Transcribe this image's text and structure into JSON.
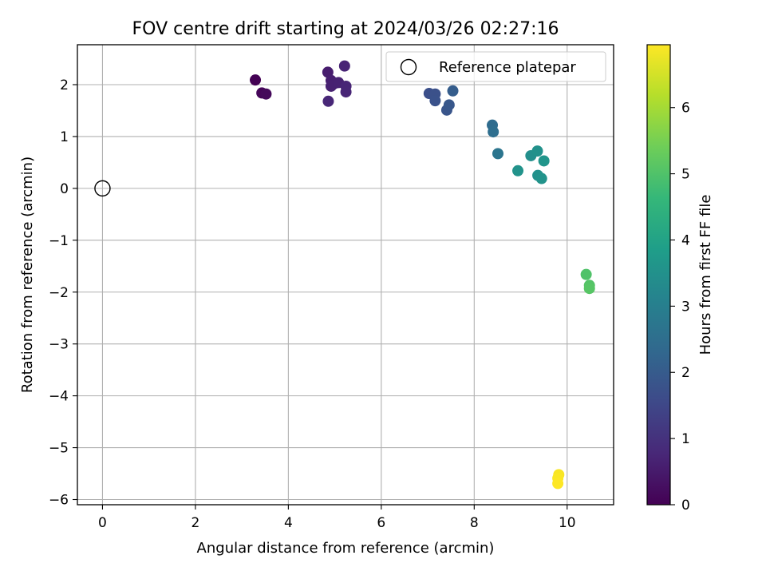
{
  "chart_data": {
    "type": "scatter",
    "title": "FOV centre drift starting at 2024/03/26 02:27:16",
    "xlabel": "Angular distance from reference (arcmin)",
    "ylabel": "Rotation from reference (arcmin)",
    "xlim": [
      -0.54,
      11.0
    ],
    "ylim": [
      -6.1,
      2.77
    ],
    "xticks": [
      0,
      2,
      4,
      6,
      8,
      10
    ],
    "xtick_labels": [
      "0",
      "2",
      "4",
      "6",
      "8",
      "10"
    ],
    "yticks": [
      2,
      1,
      0,
      -1,
      -2,
      -3,
      -4,
      -5,
      -6
    ],
    "ytick_labels": [
      "2",
      "1",
      "0",
      "−1",
      "−2",
      "−3",
      "−4",
      "−5",
      "−6"
    ],
    "grid": true,
    "legend": {
      "placement": "upper right",
      "entries": [
        "Reference platepar"
      ]
    },
    "reference_point": {
      "name": "Reference platepar",
      "x": 0,
      "y": 0,
      "style": "hollow-circle",
      "color": "#000000"
    },
    "colorbar": {
      "label": "Hours from first FF file",
      "colormap": "viridis",
      "range": [
        0,
        6.95
      ],
      "ticks": [
        0,
        1,
        2,
        3,
        4,
        5,
        6
      ],
      "tick_labels": [
        "0",
        "1",
        "2",
        "3",
        "4",
        "5",
        "6"
      ],
      "gradient_stops": [
        "#440154",
        "#482878",
        "#3e4989",
        "#31688e",
        "#26828e",
        "#1f9e89",
        "#35b779",
        "#6ece58",
        "#b5de2b",
        "#fde725"
      ]
    },
    "points": [
      {
        "x": 3.29,
        "y": 2.09,
        "hours": 0.0
      },
      {
        "x": 3.43,
        "y": 1.84,
        "hours": 0.1
      },
      {
        "x": 3.52,
        "y": 1.82,
        "hours": 0.15
      },
      {
        "x": 4.85,
        "y": 2.24,
        "hours": 0.55
      },
      {
        "x": 4.92,
        "y": 2.08,
        "hours": 0.6
      },
      {
        "x": 4.99,
        "y": 2.02,
        "hours": 0.62
      },
      {
        "x": 4.92,
        "y": 1.97,
        "hours": 0.63
      },
      {
        "x": 5.08,
        "y": 2.04,
        "hours": 0.65
      },
      {
        "x": 5.21,
        "y": 2.36,
        "hours": 0.7
      },
      {
        "x": 5.24,
        "y": 1.97,
        "hours": 0.72
      },
      {
        "x": 5.24,
        "y": 1.86,
        "hours": 0.73
      },
      {
        "x": 4.86,
        "y": 1.68,
        "hours": 0.75
      },
      {
        "x": 7.03,
        "y": 1.83,
        "hours": 1.7
      },
      {
        "x": 7.16,
        "y": 1.82,
        "hours": 1.75
      },
      {
        "x": 7.16,
        "y": 1.69,
        "hours": 1.78
      },
      {
        "x": 7.41,
        "y": 1.51,
        "hours": 1.85
      },
      {
        "x": 7.46,
        "y": 1.61,
        "hours": 1.9
      },
      {
        "x": 7.54,
        "y": 1.88,
        "hours": 2.05
      },
      {
        "x": 8.39,
        "y": 1.22,
        "hours": 2.45
      },
      {
        "x": 8.41,
        "y": 1.09,
        "hours": 2.5
      },
      {
        "x": 8.51,
        "y": 0.67,
        "hours": 2.7
      },
      {
        "x": 8.94,
        "y": 0.34,
        "hours": 3.55
      },
      {
        "x": 9.22,
        "y": 0.63,
        "hours": 3.45
      },
      {
        "x": 9.36,
        "y": 0.72,
        "hours": 3.5
      },
      {
        "x": 9.37,
        "y": 0.25,
        "hours": 3.5
      },
      {
        "x": 9.45,
        "y": 0.19,
        "hours": 3.55
      },
      {
        "x": 9.5,
        "y": 0.53,
        "hours": 3.6
      },
      {
        "x": 10.41,
        "y": -1.66,
        "hours": 5.0
      },
      {
        "x": 10.48,
        "y": -1.87,
        "hours": 5.05
      },
      {
        "x": 10.48,
        "y": -1.93,
        "hours": 5.1
      },
      {
        "x": 9.82,
        "y": -5.52,
        "hours": 6.9
      },
      {
        "x": 9.8,
        "y": -5.59,
        "hours": 6.92
      },
      {
        "x": 9.8,
        "y": -5.69,
        "hours": 6.95
      }
    ]
  }
}
